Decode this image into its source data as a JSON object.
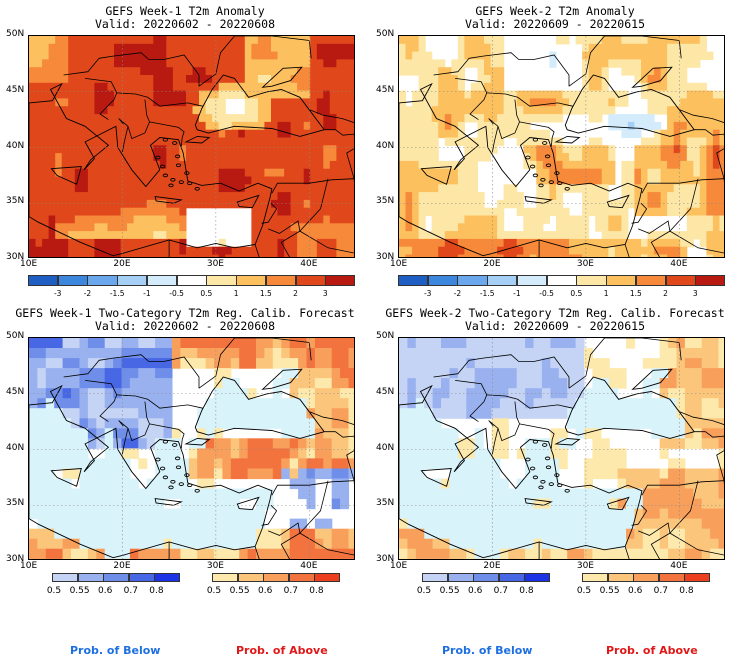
{
  "panels": [
    {
      "title": "GEFS Week-1 T2m Anomaly",
      "valid": "Valid: 20220602 - 20220608",
      "kind": "anom1"
    },
    {
      "title": "GEFS Week-2 T2m Anomaly",
      "valid": "Valid: 20220609 - 20220615",
      "kind": "anom2"
    },
    {
      "title": "GEFS Week-1 Two-Category T2m Reg. Calib. Forecast",
      "valid": "Valid: 20220602 - 20220608",
      "kind": "prob1"
    },
    {
      "title": "GEFS Week-2 Two-Category T2m Reg. Calib. Forecast",
      "valid": "Valid: 20220609 - 20220615",
      "kind": "prob2"
    }
  ],
  "lat_labels": [
    "50N",
    "45N",
    "40N",
    "35N",
    "30N"
  ],
  "lon_labels": [
    "10E",
    "20E",
    "30E",
    "40E"
  ],
  "anomaly_colorbar": {
    "ticks": [
      "-3",
      "-2",
      "-1.5",
      "-1",
      "-0.5",
      "0.5",
      "1",
      "1.5",
      "2",
      "3"
    ],
    "colors": [
      "#1f5fc4",
      "#3d86de",
      "#6ba7ec",
      "#a6cff5",
      "#d4ebfb",
      "#ffffff",
      "#fde7a6",
      "#fcc05e",
      "#f6893a",
      "#e0481c",
      "#b81a12"
    ]
  },
  "below_colorbar": {
    "ticks": [
      "0.5",
      "0.55",
      "0.6",
      "0.7",
      "0.8"
    ],
    "colors": [
      "#c5d4f4",
      "#99b2ef",
      "#6f8ee9",
      "#4767e5",
      "#1c33e6"
    ]
  },
  "above_colorbar": {
    "ticks": [
      "0.5",
      "0.55",
      "0.6",
      "0.7",
      "0.8"
    ],
    "colors": [
      "#fde9ac",
      "#fbc67b",
      "#f8a05b",
      "#f3733f",
      "#ec3f1f"
    ]
  },
  "legend": {
    "below": "Prob. of Below",
    "above": "Prob. of Above"
  },
  "colors": {
    "sea_prob": "#d9f3fb",
    "land_neutral": "#ffffff",
    "border": "#000000"
  }
}
